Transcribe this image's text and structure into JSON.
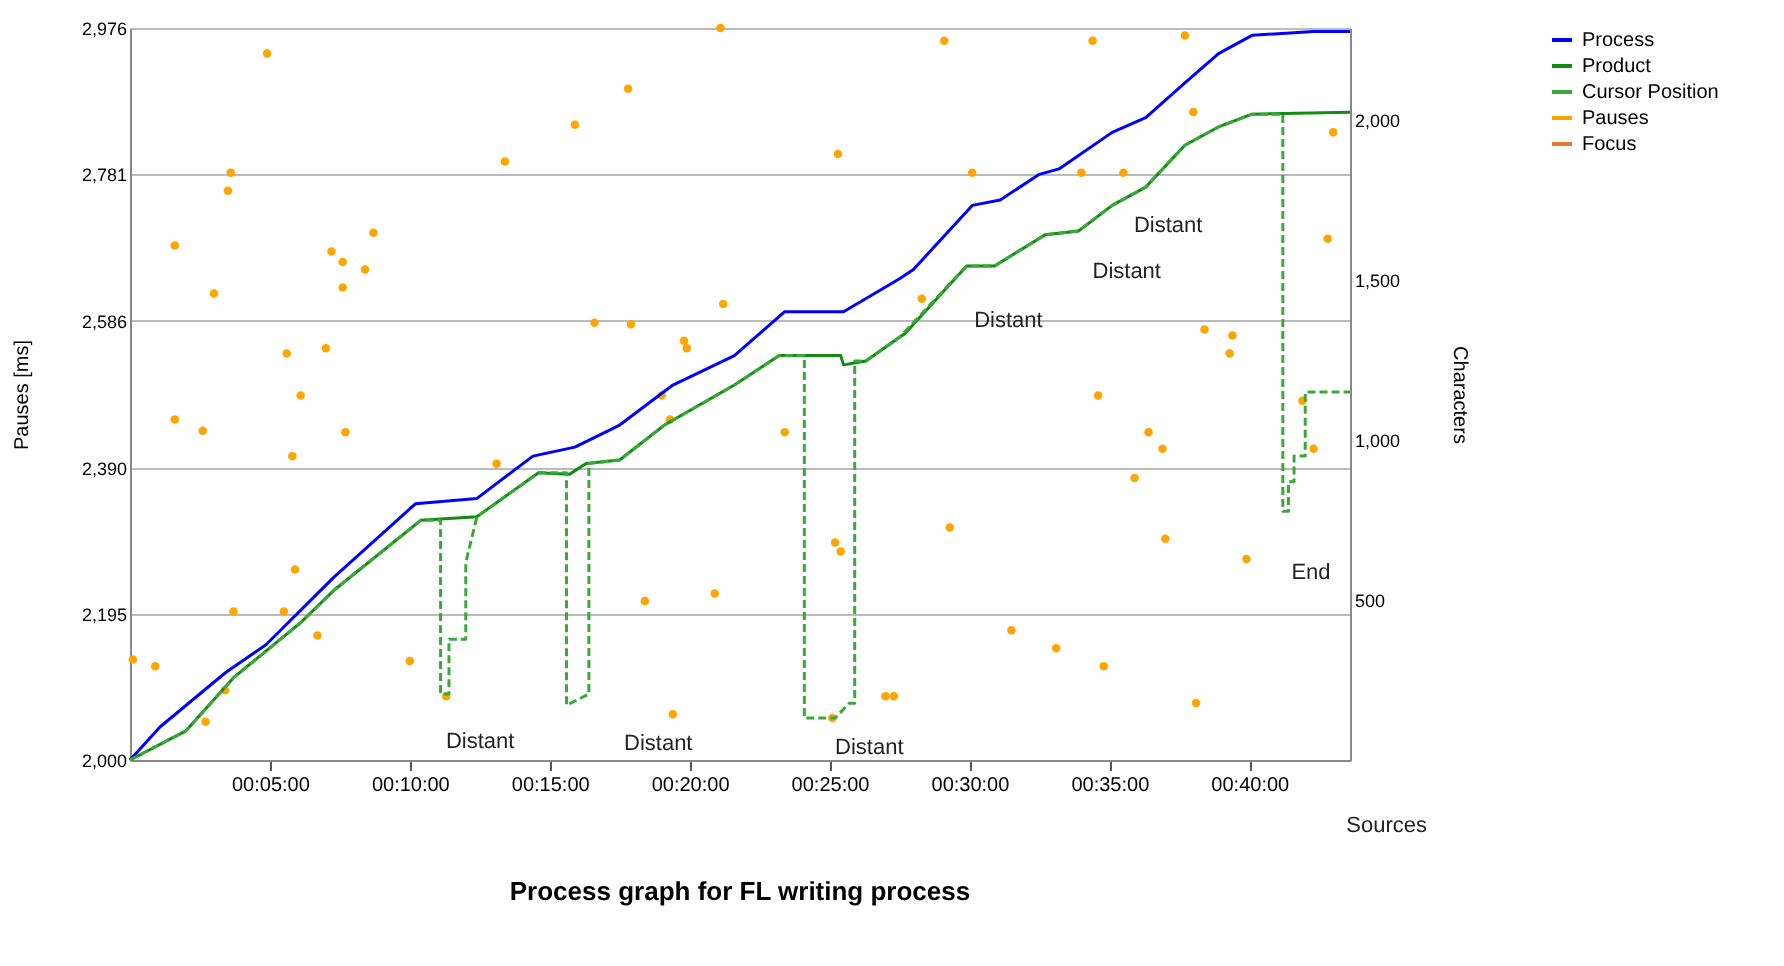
{
  "chart_data": {
    "type": "line",
    "title": "Process graph for FL writing process",
    "ylabel": "Pauses [ms]",
    "y2label": "Characters",
    "xlim": [
      0,
      43.6
    ],
    "xticks": [
      {
        "value": 5,
        "label": "00:05:00"
      },
      {
        "value": 10,
        "label": "00:10:00"
      },
      {
        "value": 15,
        "label": "00:15:00"
      },
      {
        "value": 20,
        "label": "00:20:00"
      },
      {
        "value": 25,
        "label": "00:25:00"
      },
      {
        "value": 30,
        "label": "00:30:00"
      },
      {
        "value": 35,
        "label": "00:35:00"
      },
      {
        "value": 40,
        "label": "00:40:00"
      }
    ],
    "ylim": [
      2000,
      2976
    ],
    "yticks": [
      {
        "value": 2000,
        "label": "2,000"
      },
      {
        "value": 2195,
        "label": "2,195"
      },
      {
        "value": 2390,
        "label": "2,390"
      },
      {
        "value": 2586,
        "label": "2,586"
      },
      {
        "value": 2781,
        "label": "2,781"
      },
      {
        "value": 2976,
        "label": "2,976"
      }
    ],
    "y2lim": [
      0,
      2286
    ],
    "y2ticks": [
      500,
      {
        "value": 1000,
        "label": "1,000"
      },
      {
        "value": 1500,
        "label": "1,500"
      },
      {
        "value": 2000,
        "label": "2,000"
      }
    ],
    "grid": "y",
    "legend": "top right",
    "series": [
      {
        "name": "Process",
        "axis": "y2",
        "color": "#0000ff",
        "line_style": "solid",
        "x": [
          0,
          1.07,
          3.43,
          4.86,
          7.29,
          10.2,
          12.4,
          14.4,
          15.9,
          17.5,
          19.4,
          21.6,
          23.4,
          25.5,
          27.5,
          28.0,
          30.1,
          31.1,
          32.5,
          33.2,
          35.1,
          36.3,
          37.7,
          38.9,
          40.1,
          42.3,
          43.6
        ],
        "values": [
          0,
          103,
          274,
          360,
          571,
          800,
          817,
          949,
          977,
          1046,
          1171,
          1263,
          1400,
          1400,
          1503,
          1532,
          1732,
          1749,
          1829,
          1846,
          1960,
          2006,
          2115,
          2206,
          2263,
          2275,
          2275
        ]
      },
      {
        "name": "Product",
        "axis": "y2",
        "color": "#118c11",
        "line_style": "solid",
        "x": [
          0,
          2.0,
          3.7,
          6.1,
          7.3,
          10.4,
          12.4,
          14.6,
          15.7,
          16.3,
          17.5,
          19.1,
          21.6,
          23.2,
          25.4,
          25.5,
          26.3,
          27.5,
          27.7,
          29.9,
          30.9,
          32.7,
          33.9,
          35.1,
          36.3,
          37.7,
          38.9,
          40.1,
          43.6
        ],
        "values": [
          0,
          91,
          257,
          429,
          531,
          749,
          760,
          897,
          892,
          926,
          937,
          1046,
          1171,
          1263,
          1263,
          1234,
          1246,
          1320,
          1332,
          1543,
          1543,
          1640,
          1652,
          1732,
          1789,
          1920,
          1977,
          2017,
          2023
        ]
      },
      {
        "name": "Cursor Position",
        "axis": "y2",
        "color": "#3aa83a",
        "line_style": "dashed",
        "x": [
          0,
          2.0,
          3.7,
          6.1,
          7.3,
          10.4,
          11.1,
          11.1,
          11.4,
          11.4,
          12.0,
          12.0,
          12.4,
          14.6,
          15.6,
          15.6,
          16.4,
          16.4,
          17.5,
          19.1,
          21.6,
          23.2,
          24.1,
          24.1,
          25.2,
          25.7,
          25.9,
          25.9,
          26.3,
          27.5,
          29.9,
          30.9,
          32.7,
          33.9,
          35.1,
          36.3,
          37.7,
          38.9,
          40.1,
          41.2,
          41.2,
          41.4,
          41.4,
          41.6,
          41.6,
          42.0,
          42.0,
          43.6
        ],
        "values": [
          0,
          91,
          257,
          429,
          531,
          749,
          749,
          206,
          206,
          377,
          377,
          617,
          760,
          897,
          897,
          171,
          206,
          926,
          937,
          1046,
          1171,
          1263,
          1263,
          131,
          131,
          177,
          177,
          1246,
          1246,
          1320,
          1543,
          1543,
          1640,
          1652,
          1732,
          1789,
          1920,
          1977,
          2017,
          2017,
          777,
          777,
          869,
          869,
          949,
          949,
          1149,
          1149
        ]
      },
      {
        "name": "Pauses",
        "type": "scatter",
        "marker": "circle",
        "color": "#ffa500",
        "x": [
          0.1,
          0.9,
          1.6,
          1.6,
          2.6,
          2.7,
          3.0,
          3.4,
          3.5,
          3.6,
          3.7,
          4.9,
          5.5,
          5.6,
          5.8,
          5.9,
          6.1,
          6.7,
          7.0,
          7.2,
          7.6,
          7.6,
          7.7,
          8.4,
          8.7,
          10.0,
          11.3,
          13.1,
          13.4,
          15.9,
          16.6,
          17.8,
          17.9,
          18.4,
          19.0,
          19.3,
          19.4,
          19.8,
          19.9,
          20.9,
          21.1,
          21.2,
          23.4,
          25.1,
          25.2,
          25.4,
          25.3,
          27.0,
          27.3,
          29.1,
          28.3,
          29.3,
          30.1,
          31.5,
          33.1,
          34.0,
          34.4,
          34.6,
          34.8,
          35.5,
          35.9,
          36.4,
          36.9,
          37.0,
          37.7,
          38.0,
          38.1,
          38.4,
          39.3,
          39.4,
          39.9,
          41.9,
          42.3,
          42.8,
          43.0
        ],
        "values": [
          2134,
          2125,
          2686,
          2454,
          2439,
          2051,
          2622,
          2093,
          2759,
          2783,
          2198,
          2942,
          2198,
          2542,
          2405,
          2254,
          2486,
          2166,
          2549,
          2678,
          2664,
          2630,
          2437,
          2654,
          2703,
          2132,
          2085,
          2395,
          2798,
          2847,
          2583,
          2895,
          2581,
          2212,
          2486,
          2454,
          2061,
          2559,
          2549,
          2222,
          2976,
          2608,
          2437,
          2056,
          2290,
          2278,
          2808,
          2085,
          2085,
          2959,
          2615,
          2310,
          2783,
          2173,
          2149,
          2783,
          2959,
          2486,
          2125,
          2783,
          2376,
          2437,
          2415,
          2295,
          2966,
          2864,
          2076,
          2574,
          2542,
          2566,
          2268,
          2479,
          2415,
          2695,
          2837
        ]
      },
      {
        "name": "Focus",
        "axis": "y2",
        "color": "#e8742e",
        "line_style": "solid"
      }
    ],
    "annotations": [
      "Distant",
      "Distant",
      "Distant",
      "Distant",
      "Distant",
      "Distant",
      "End",
      "Sources"
    ]
  }
}
